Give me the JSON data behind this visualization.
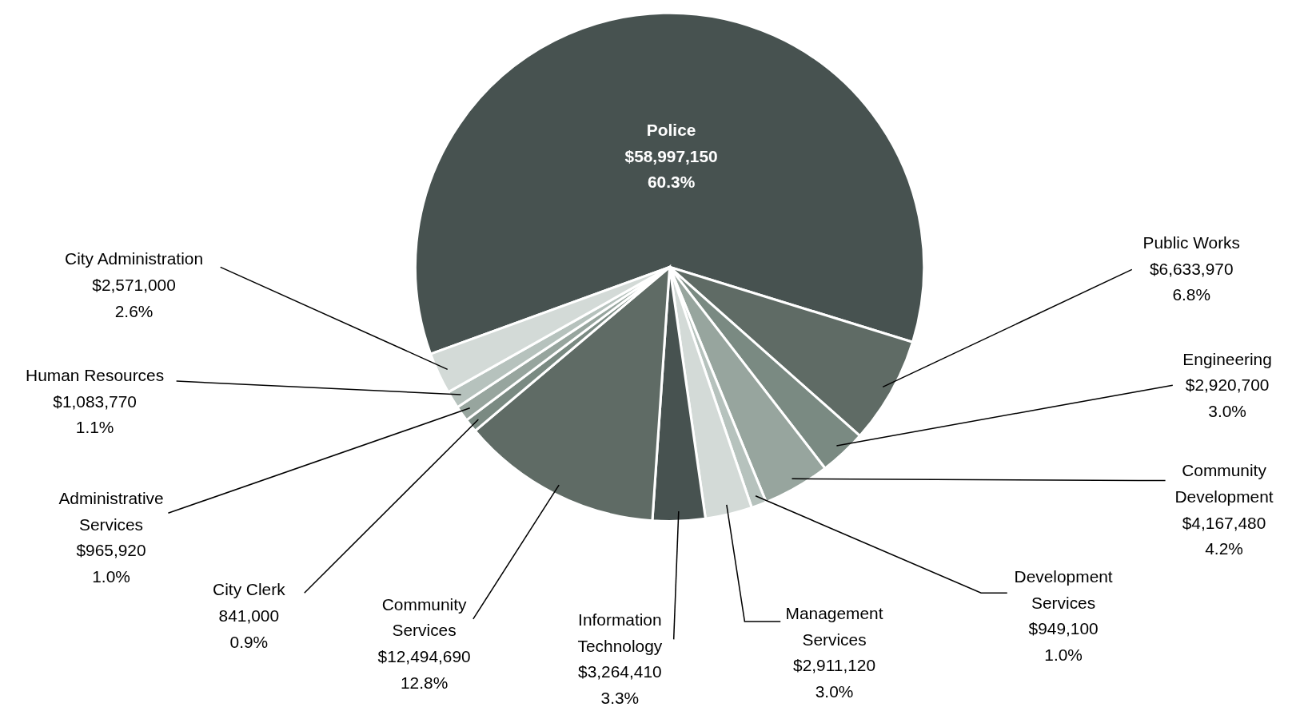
{
  "chart_data": {
    "type": "pie",
    "categories": [
      "Police",
      "Public Works",
      "Engineering",
      "Community Development",
      "Development Services",
      "Management Services",
      "Information Technology",
      "Community Services",
      "City Clerk",
      "Administrative Services",
      "Human Resources",
      "City Administration"
    ],
    "values": [
      58997150,
      6633970,
      2920700,
      4167480,
      949100,
      2911120,
      3264410,
      12494690,
      841000,
      965920,
      1083770,
      2571000
    ],
    "colors": [
      "#475250",
      "#5f6b65",
      "#7a8a82",
      "#97a59e",
      "#b6c2bd",
      "#d3dad7",
      "#475250",
      "#5f6b65",
      "#7a8a82",
      "#97a59e",
      "#b6c2bd",
      "#d3dad7"
    ],
    "value_labels": [
      "$58,997,150\n60.3%",
      "$6,633,970\n6.8%",
      "$2,920,700\n3.0%",
      "$4,167,480\n4.2%",
      "$949,100\n1.0%",
      "$2,911,120\n3.0%",
      "$3,264,410\n3.3%",
      "$12,494,690\n12.8%",
      "841,000\n0.9%",
      "$965,920\n1.0%",
      "$1,083,770\n1.1%",
      "$2,571,000\n2.6%"
    ]
  }
}
